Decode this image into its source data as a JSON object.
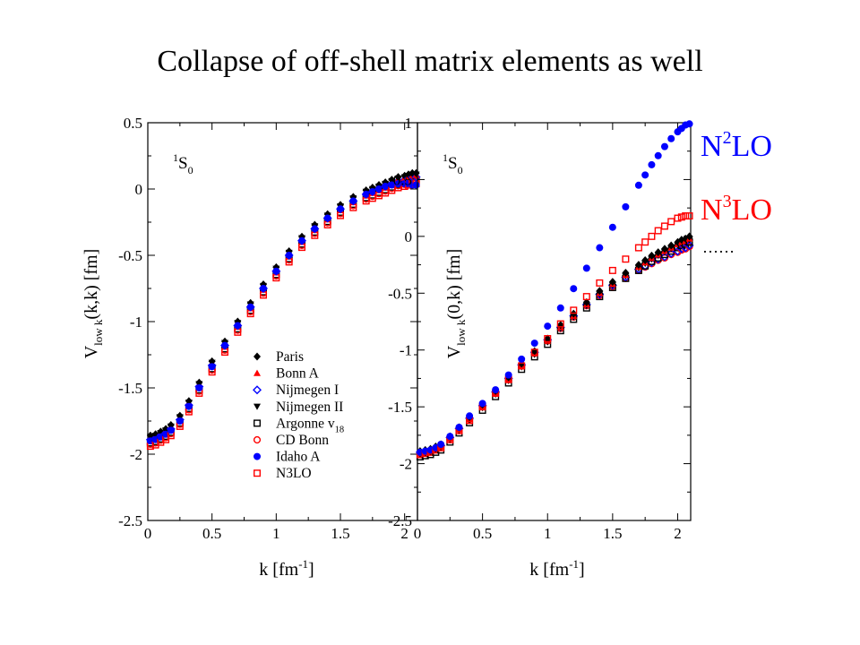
{
  "slide": {
    "title": "Collapse of off-shell matrix elements as well",
    "side_labels": {
      "n2lo": {
        "base": "N",
        "sup": "2",
        "rest": "LO",
        "color": "#0000ff"
      },
      "n3lo": {
        "base": "N",
        "sup": "3",
        "rest": "LO",
        "color": "#ff0000"
      },
      "ellipsis": "……"
    }
  },
  "chart_data": [
    {
      "type": "scatter",
      "panel_label": {
        "sup": "1",
        "main": "S",
        "sub": "0"
      },
      "xlabel": {
        "main": "k [fm",
        "sup": "-1",
        "tail": "]"
      },
      "ylabel": {
        "main": "V",
        "sub": "low k",
        "tail": "(k,k) [fm]"
      },
      "xlim": [
        0,
        2.1
      ],
      "ylim": [
        -2.5,
        0.5
      ],
      "xticks": [
        "0",
        "0.5",
        "1",
        "1.5",
        "2"
      ],
      "yticks": [
        "0.5",
        "0",
        "-0.5",
        "-1",
        "-1.5",
        "-2",
        "-2.5"
      ],
      "legend": {
        "placement": "lower-right",
        "entries": [
          {
            "name": "Paris",
            "marker": "diamond-filled",
            "color": "#000000"
          },
          {
            "name": "Bonn A",
            "marker": "triangle-up-filled",
            "color": "#ff0000"
          },
          {
            "name": "Nijmegen I",
            "marker": "diamond-open",
            "color": "#0000ff"
          },
          {
            "name": "Nijmegen II",
            "marker": "triangle-down-filled",
            "color": "#000000"
          },
          {
            "name": "Argonne v",
            "sub": "18",
            "marker": "square-open",
            "color": "#000000"
          },
          {
            "name": "CD Bonn",
            "marker": "circle-open",
            "color": "#ff0000"
          },
          {
            "name": "Idaho A",
            "marker": "circle-filled",
            "color": "#0000ff"
          },
          {
            "name": "N3LO",
            "marker": "square-open",
            "color": "#ff0000"
          }
        ]
      },
      "x": [
        0.02,
        0.06,
        0.1,
        0.14,
        0.18,
        0.25,
        0.32,
        0.4,
        0.5,
        0.6,
        0.7,
        0.8,
        0.9,
        1.0,
        1.1,
        1.2,
        1.3,
        1.4,
        1.5,
        1.6,
        1.7,
        1.75,
        1.8,
        1.85,
        1.9,
        1.95,
        2.0,
        2.03,
        2.06,
        2.09
      ],
      "curves": {
        "base": [
          -1.88,
          -1.87,
          -1.85,
          -1.83,
          -1.8,
          -1.73,
          -1.62,
          -1.48,
          -1.32,
          -1.17,
          -1.02,
          -0.88,
          -0.74,
          -0.61,
          -0.49,
          -0.38,
          -0.29,
          -0.21,
          -0.14,
          -0.08,
          -0.03,
          -0.01,
          0.01,
          0.03,
          0.05,
          0.07,
          0.08,
          0.09,
          0.1,
          0.1
        ],
        "idaho": [
          -1.9,
          -1.89,
          -1.87,
          -1.85,
          -1.82,
          -1.75,
          -1.64,
          -1.5,
          -1.34,
          -1.18,
          -1.03,
          -0.89,
          -0.75,
          -0.62,
          -0.5,
          -0.39,
          -0.3,
          -0.22,
          -0.15,
          -0.09,
          -0.04,
          -0.02,
          0.0,
          0.02,
          0.03,
          0.04,
          0.04,
          0.04,
          0.03,
          0.03
        ]
      }
    },
    {
      "type": "scatter",
      "panel_label": {
        "sup": "1",
        "main": "S",
        "sub": "0"
      },
      "xlabel": {
        "main": "k [fm",
        "sup": "-1",
        "tail": "]"
      },
      "ylabel": {
        "main": "V",
        "sub": "low k",
        "tail": "(0,k) [fm]"
      },
      "xlim": [
        0,
        2.1
      ],
      "ylim": [
        -2.5,
        1
      ],
      "xticks": [
        "0",
        "0.5",
        "1",
        "1.5",
        "2"
      ],
      "yticks": [
        "1",
        "0.5",
        "0",
        "-0.5",
        "-1",
        "-1.5",
        "-2",
        "-2.5"
      ],
      "x": [
        0.02,
        0.06,
        0.1,
        0.14,
        0.18,
        0.25,
        0.32,
        0.4,
        0.5,
        0.6,
        0.7,
        0.8,
        0.9,
        1.0,
        1.1,
        1.2,
        1.3,
        1.4,
        1.5,
        1.6,
        1.7,
        1.75,
        1.8,
        1.85,
        1.9,
        1.95,
        2.0,
        2.03,
        2.06,
        2.09
      ],
      "curves": {
        "base": [
          -1.91,
          -1.9,
          -1.89,
          -1.87,
          -1.85,
          -1.78,
          -1.7,
          -1.61,
          -1.5,
          -1.38,
          -1.26,
          -1.14,
          -1.03,
          -0.92,
          -0.81,
          -0.71,
          -0.61,
          -0.52,
          -0.44,
          -0.37,
          -0.3,
          -0.27,
          -0.24,
          -0.21,
          -0.19,
          -0.16,
          -0.14,
          -0.12,
          -0.11,
          -0.09
        ],
        "paris": [
          -1.91,
          -1.9,
          -1.89,
          -1.87,
          -1.85,
          -1.78,
          -1.7,
          -1.61,
          -1.5,
          -1.38,
          -1.26,
          -1.14,
          -1.03,
          -0.92,
          -0.8,
          -0.7,
          -0.6,
          -0.5,
          -0.42,
          -0.34,
          -0.27,
          -0.23,
          -0.19,
          -0.16,
          -0.13,
          -0.1,
          -0.07,
          -0.05,
          -0.04,
          -0.02
        ],
        "idaho": [
          -1.9,
          -1.89,
          -1.88,
          -1.86,
          -1.83,
          -1.76,
          -1.68,
          -1.58,
          -1.47,
          -1.35,
          -1.22,
          -1.08,
          -0.94,
          -0.79,
          -0.63,
          -0.46,
          -0.28,
          -0.1,
          0.08,
          0.26,
          0.45,
          0.54,
          0.63,
          0.71,
          0.79,
          0.86,
          0.92,
          0.95,
          0.98,
          0.99
        ],
        "n3lo": [
          -1.92,
          -1.91,
          -1.9,
          -1.88,
          -1.86,
          -1.79,
          -1.71,
          -1.62,
          -1.5,
          -1.38,
          -1.26,
          -1.14,
          -1.02,
          -0.9,
          -0.77,
          -0.65,
          -0.53,
          -0.41,
          -0.3,
          -0.2,
          -0.1,
          -0.05,
          0.0,
          0.05,
          0.09,
          0.13,
          0.16,
          0.17,
          0.18,
          0.18
        ]
      }
    }
  ]
}
